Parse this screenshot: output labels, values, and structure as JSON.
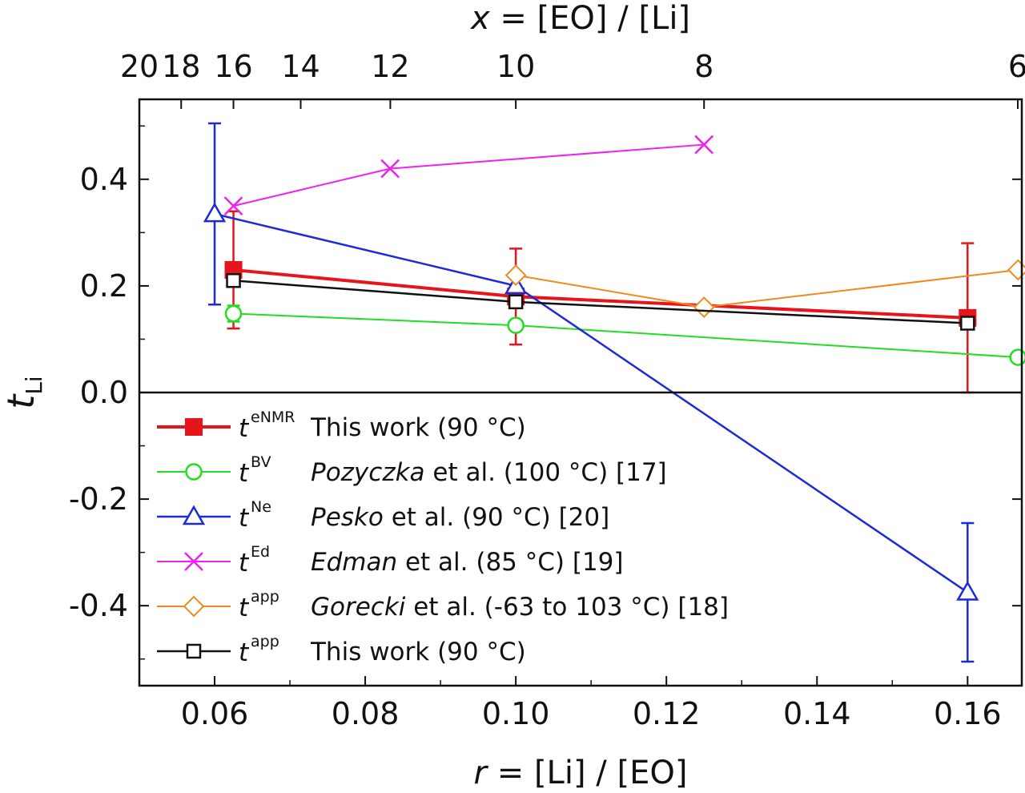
{
  "chart_data": {
    "type": "line",
    "xlabel_bottom": {
      "var": "r",
      "rest": " = [Li] / [EO]"
    },
    "xlabel_top": {
      "var": "x",
      "rest": " = [EO] / [Li]"
    },
    "ylabel": {
      "var": "t",
      "sub": "Li"
    },
    "xlim": [
      0.05,
      0.1672
    ],
    "ylim": [
      -0.55,
      0.55
    ],
    "x_ticks": [
      0.06,
      0.08,
      0.1,
      0.12,
      0.14,
      0.16
    ],
    "x_tick_labels": [
      "0.06",
      "0.08",
      "0.10",
      "0.12",
      "0.14",
      "0.16"
    ],
    "y_ticks": [
      -0.4,
      -0.2,
      0.0,
      0.2,
      0.4
    ],
    "y_tick_labels": [
      "-0.4",
      "-0.2",
      "0.0",
      "0.2",
      "0.4"
    ],
    "top_ticks": [
      {
        "x": 20,
        "label": "20"
      },
      {
        "x": 18,
        "label": "18"
      },
      {
        "x": 16,
        "label": "16"
      },
      {
        "x": 14,
        "label": "14"
      },
      {
        "x": 12,
        "label": "12"
      },
      {
        "x": 10,
        "label": "10"
      },
      {
        "x": 8,
        "label": "8"
      },
      {
        "x": 6,
        "label": "6"
      }
    ],
    "zero_line": true,
    "series": [
      {
        "name": "tENMR",
        "sym": "t",
        "sup": "eNMR",
        "label": "This work (90 °C)",
        "label_italic": "",
        "label_rest": "This work (90 °C)",
        "color": "#e8141c",
        "marker": "square-filled",
        "lw": 4,
        "x": [
          0.0625,
          0.1,
          0.16
        ],
        "y": [
          0.23,
          0.18,
          0.14
        ],
        "err": [
          0.11,
          0.09,
          0.14
        ]
      },
      {
        "name": "tBV",
        "sym": "t",
        "sup": "BV",
        "label_italic": "Pozyczka",
        "label_rest": " et al. (100 °C) [17]",
        "color": "#22dd22",
        "marker": "circle",
        "lw": 2,
        "x": [
          0.0625,
          0.1,
          0.1667
        ],
        "y": [
          0.148,
          0.126,
          0.066
        ],
        "err": [
          0.015,
          null,
          null
        ]
      },
      {
        "name": "tNe",
        "sym": "t",
        "sup": "Ne",
        "label_italic": "Pesko",
        "label_rest": " et al. (90 °C) [20]",
        "color": "#1c2bd6",
        "marker": "triangle",
        "lw": 2.5,
        "x": [
          0.06,
          0.1,
          0.16
        ],
        "y": [
          0.335,
          0.2,
          -0.375
        ],
        "err": [
          0.17,
          null,
          0.13
        ]
      },
      {
        "name": "tEd",
        "sym": "t",
        "sup": "Ed",
        "label_italic": "Edman",
        "label_rest": " et al. (85 °C) [19]",
        "color": "#ee22ee",
        "marker": "cross",
        "lw": 2,
        "x": [
          0.0625,
          0.0833,
          0.125
        ],
        "y": [
          0.35,
          0.42,
          0.465
        ],
        "err": [
          null,
          null,
          null
        ]
      },
      {
        "name": "tapp-gorecki",
        "sym": "t",
        "sup": "app",
        "label_italic": "Gorecki",
        "label_rest": " et al. (-63 to 103 °C) [18]",
        "color": "#f08a1e",
        "marker": "diamond",
        "lw": 2,
        "x": [
          0.1,
          0.125,
          0.1667
        ],
        "y": [
          0.22,
          0.16,
          0.23
        ],
        "err": [
          null,
          null,
          null
        ]
      },
      {
        "name": "tapp-thiswork",
        "sym": "t",
        "sup": "app",
        "label_italic": "",
        "label_rest": "This work (90 °C)",
        "color": "#111111",
        "marker": "square",
        "lw": 2.5,
        "x": [
          0.0625,
          0.1,
          0.16
        ],
        "y": [
          0.21,
          0.17,
          0.13
        ],
        "err": [
          null,
          null,
          null
        ]
      }
    ]
  }
}
